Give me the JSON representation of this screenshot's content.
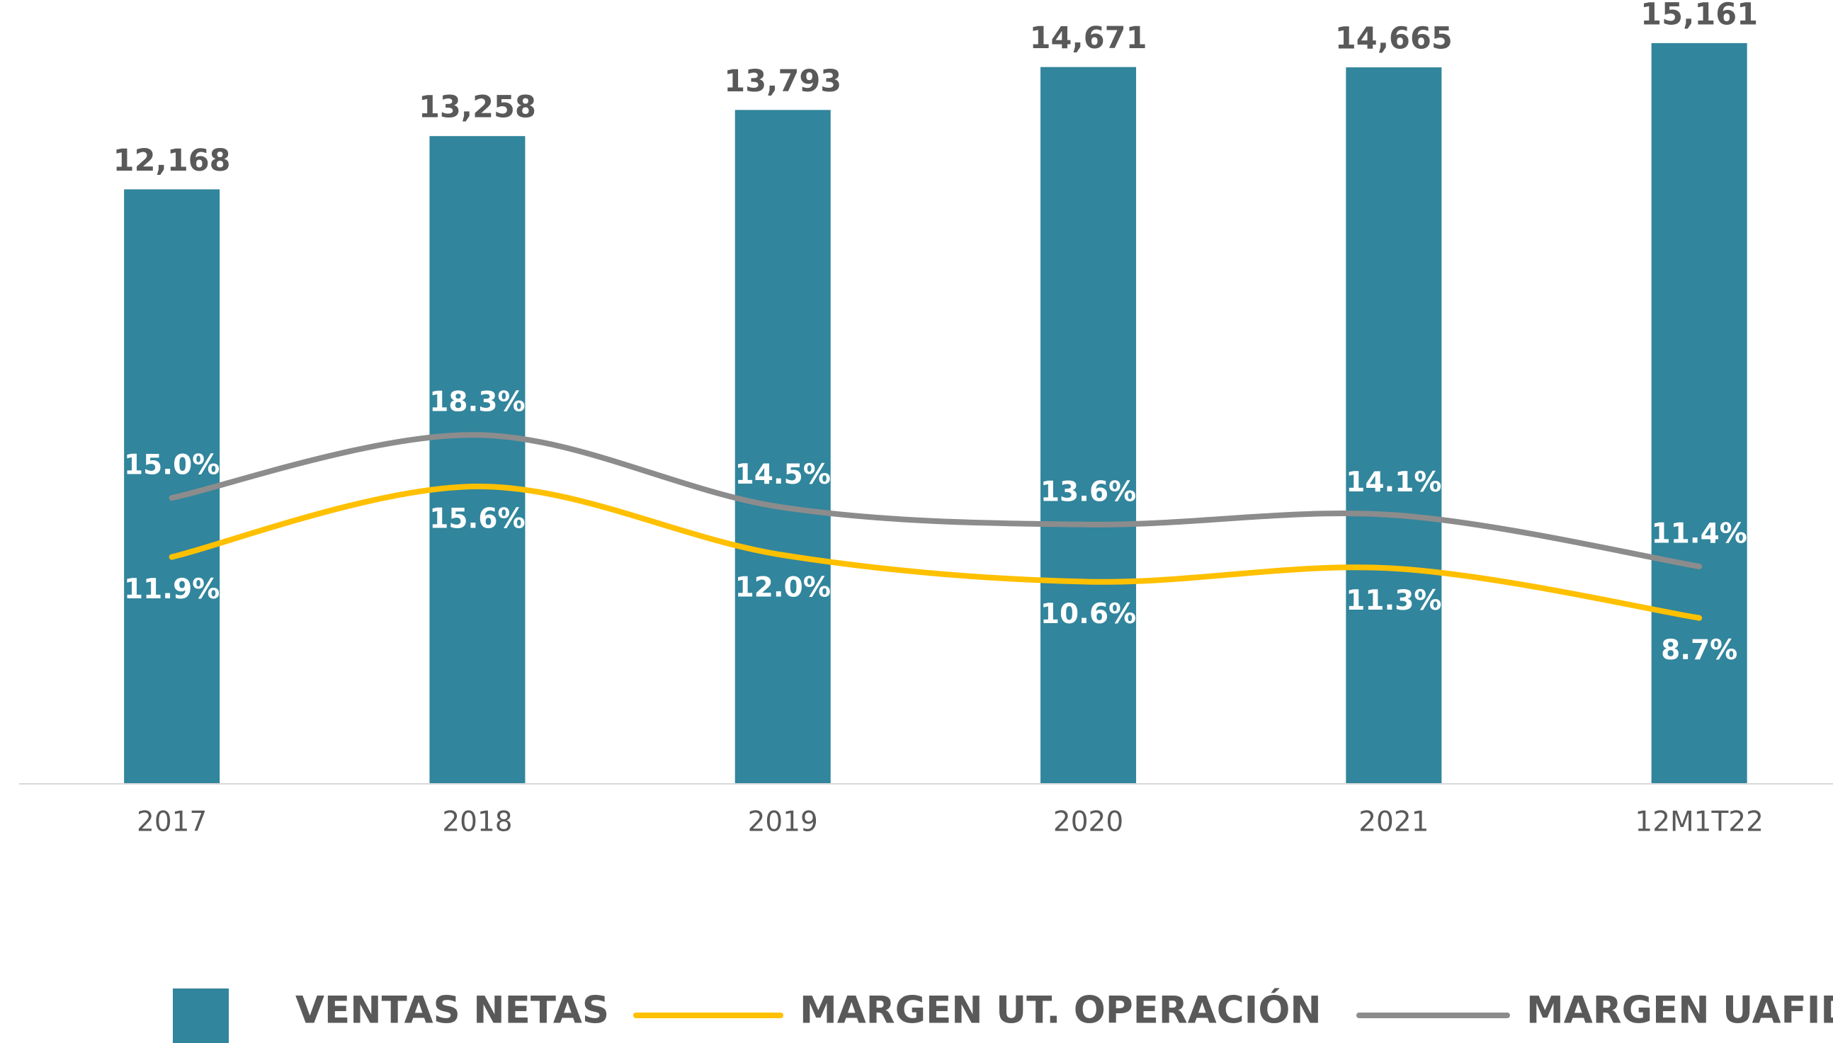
{
  "chart_data": {
    "type": "bar",
    "categories": [
      "2017",
      "2018",
      "2019",
      "2020",
      "2021",
      "12M1T22"
    ],
    "ylim": [
      0,
      16000
    ],
    "y2lim": [
      0,
      41
    ],
    "series": [
      {
        "name": "VENTAS NETAS",
        "type": "bar",
        "color": "#31859c",
        "values": [
          12168,
          13258,
          13793,
          14671,
          14665,
          15161
        ],
        "value_labels": [
          "12,168",
          "13,258",
          "13,793",
          "14,671",
          "14,665",
          "15,161"
        ]
      },
      {
        "name": "MARGEN UT. OPERACIÓN",
        "type": "line",
        "axis": "y2",
        "color": "#ffc000",
        "label_position": "below",
        "values": [
          11.9,
          15.6,
          12.0,
          10.6,
          11.3,
          8.7
        ],
        "value_labels": [
          "11.9%",
          "15.6%",
          "12.0%",
          "10.6%",
          "11.3%",
          "8.7%"
        ]
      },
      {
        "name": "MARGEN UAFIDA",
        "type": "line",
        "axis": "y2",
        "color": "#8c8c8c",
        "label_position": "above",
        "values": [
          15.0,
          18.3,
          14.5,
          13.6,
          14.1,
          11.4
        ],
        "value_labels": [
          "15.0%",
          "18.3%",
          "14.5%",
          "13.6%",
          "14.1%",
          "11.4%"
        ]
      }
    ],
    "legend": "bottom"
  }
}
